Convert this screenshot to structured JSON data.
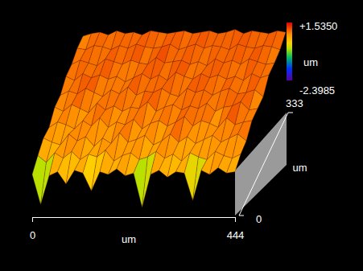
{
  "chart_data": {
    "type": "surface",
    "xlabel": "um",
    "ylabel": "um",
    "xlim": [
      0,
      444
    ],
    "ylim": [
      0,
      333
    ],
    "xticks": [
      0,
      444
    ],
    "yticks": [
      0,
      333
    ],
    "x": [
      0,
      18.5,
      37,
      55.5,
      74,
      92.5,
      111,
      129.5,
      148,
      166.5,
      185,
      203.5,
      222,
      240.5,
      259,
      277.5,
      296,
      314.5,
      333,
      351.5,
      370,
      388.5,
      407,
      425.5,
      444
    ],
    "y": [
      0,
      37,
      74,
      111,
      148,
      185,
      222,
      259,
      296,
      333
    ],
    "z": [
      [
        0.3,
        -1.9,
        0.2,
        0.5,
        -0.4,
        0.6,
        0.4,
        -0.9,
        0.5,
        0.3,
        0.7,
        0.2,
        0.4,
        -2.1,
        0.3,
        0.6,
        0.1,
        0.5,
        0.4,
        -1.6,
        0.6,
        0.3,
        0.8,
        0.4,
        0.5
      ],
      [
        0.6,
        0.1,
        0.8,
        0.4,
        0.9,
        0.3,
        0.7,
        0.5,
        1.0,
        0.2,
        0.6,
        0.8,
        0.3,
        0.5,
        0.9,
        0.4,
        0.7,
        0.2,
        0.8,
        0.5,
        0.3,
        0.9,
        0.6,
        0.4,
        0.7
      ],
      [
        0.8,
        0.5,
        0.3,
        1.1,
        0.6,
        0.9,
        0.2,
        0.8,
        0.4,
        1.2,
        0.5,
        0.7,
        1.0,
        0.3,
        0.6,
        1.1,
        0.5,
        0.9,
        0.4,
        0.7,
        1.0,
        0.5,
        0.8,
        1.1,
        0.6
      ],
      [
        0.5,
        0.9,
        0.7,
        0.4,
        1.0,
        0.6,
        1.2,
        0.5,
        0.9,
        0.7,
        1.1,
        0.4,
        0.8,
        1.0,
        0.6,
        0.9,
        1.3,
        0.6,
        1.0,
        0.8,
        0.5,
        1.2,
        0.7,
        0.9,
        1.0
      ],
      [
        0.9,
        0.6,
        1.1,
        0.8,
        0.5,
        1.2,
        0.7,
        1.0,
        0.6,
        0.9,
        0.8,
        1.3,
        0.6,
        0.9,
        1.1,
        0.7,
        1.0,
        0.8,
        1.2,
        0.6,
        0.9,
        1.0,
        1.3,
        0.7,
        0.8
      ],
      [
        0.7,
        1.0,
        0.8,
        1.2,
        0.9,
        0.6,
        1.1,
        0.8,
        1.3,
        0.7,
        1.0,
        0.9,
        1.2,
        0.8,
        0.6,
        1.2,
        0.9,
        1.1,
        0.7,
        1.0,
        1.2,
        0.8,
        0.9,
        1.1,
        0.6
      ],
      [
        1.0,
        0.7,
        1.2,
        0.9,
        1.1,
        0.8,
        1.0,
        0.6,
        0.9,
        1.2,
        0.8,
        1.1,
        0.7,
        1.3,
        1.0,
        0.8,
        1.2,
        0.9,
        1.1,
        0.8,
        1.0,
        0.7,
        1.2,
        0.9,
        1.1
      ],
      [
        0.8,
        1.1,
        0.9,
        0.7,
        1.2,
        1.0,
        0.8,
        1.1,
        0.9,
        0.8,
        1.3,
        0.9,
        1.0,
        1.1,
        0.8,
        1.0,
        0.7,
        1.2,
        0.9,
        1.1,
        0.8,
        1.2,
        1.0,
        0.8,
        0.9
      ],
      [
        0.9,
        0.8,
        1.1,
        1.0,
        0.8,
        1.1,
        0.9,
        1.2,
        1.0,
        0.9,
        1.0,
        1.2,
        0.8,
        1.0,
        1.2,
        0.9,
        1.1,
        1.0,
        0.8,
        1.2,
        1.0,
        0.9,
        1.1,
        1.0,
        0.8
      ],
      [
        0.7,
        0.9,
        1.0,
        0.8,
        1.1,
        0.9,
        1.0,
        0.8,
        1.1,
        1.0,
        0.9,
        1.0,
        1.1,
        0.9,
        1.0,
        1.1,
        0.9,
        1.0,
        1.2,
        0.9,
        1.1,
        1.0,
        0.9,
        1.1,
        1.0
      ]
    ],
    "colorbar": {
      "label": "um",
      "range": [
        -2.3985,
        1.535
      ],
      "ticks": [
        {
          "value": 1.535,
          "label": "+1.5350"
        },
        -2.3985
      ]
    }
  }
}
